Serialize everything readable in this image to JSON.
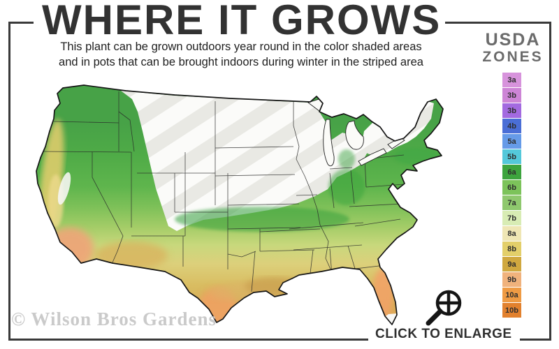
{
  "header": {
    "title": "WHERE IT GROWS",
    "subtitle_line1": "This plant can be grown outdoors year round in the color shaded areas",
    "subtitle_line2": "and in pots that can be brought indoors during winter in the striped area"
  },
  "legend": {
    "title_line1": "USDA",
    "title_line2": "ZONES",
    "zones": [
      {
        "label": "3a",
        "color": "#d793dc"
      },
      {
        "label": "3b",
        "color": "#cd85d6"
      },
      {
        "label": "3b",
        "color": "#a36ae0"
      },
      {
        "label": "4b",
        "color": "#4a6ed6"
      },
      {
        "label": "5a",
        "color": "#669be8"
      },
      {
        "label": "5b",
        "color": "#54c8da"
      },
      {
        "label": "6a",
        "color": "#3da43e"
      },
      {
        "label": "6b",
        "color": "#7cc35a"
      },
      {
        "label": "7a",
        "color": "#8fc86e"
      },
      {
        "label": "7b",
        "color": "#d8ecb4"
      },
      {
        "label": "8a",
        "color": "#efe6b4"
      },
      {
        "label": "8b",
        "color": "#e3cf6a"
      },
      {
        "label": "9a",
        "color": "#d0a83f"
      },
      {
        "label": "9b",
        "color": "#f0b27c"
      },
      {
        "label": "10a",
        "color": "#ef9b44"
      },
      {
        "label": "10b",
        "color": "#e2812e"
      }
    ]
  },
  "footer": {
    "watermark": "© Wilson Bros Gardens",
    "enlarge_label": "CLICK TO ENLARGE"
  }
}
